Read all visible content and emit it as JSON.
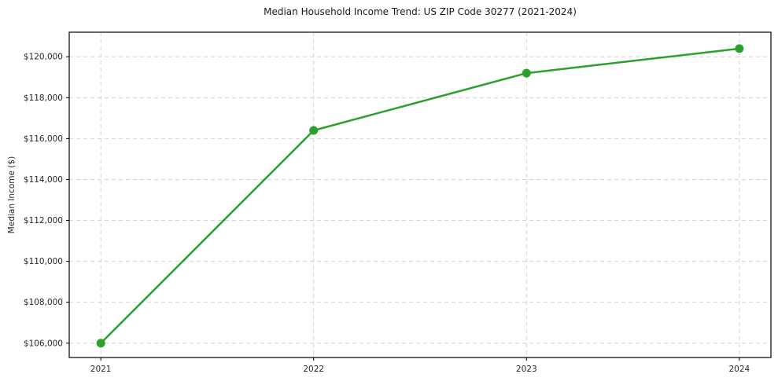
{
  "page": {
    "background_color": "#ffffff"
  },
  "chart_data": {
    "type": "line",
    "title": "Median Household Income Trend: US ZIP Code 30277 (2021-2024)",
    "xlabel": "",
    "ylabel": "Median Income ($)",
    "x": [
      2021,
      2022,
      2023,
      2024
    ],
    "x_tick_labels": [
      "2021",
      "2022",
      "2023",
      "2024"
    ],
    "series": [
      {
        "name": "Median Household Income",
        "values": [
          106000,
          116400,
          119200,
          120400
        ],
        "color": "#2ca02c"
      }
    ],
    "y_ticks": [
      106000,
      108000,
      110000,
      112000,
      114000,
      116000,
      118000,
      120000
    ],
    "y_tick_labels": [
      "$106,000",
      "$108,000",
      "$110,000",
      "$112,000",
      "$114,000",
      "$116,000",
      "$118,000",
      "$120,000"
    ],
    "ylim": [
      105300,
      121200
    ],
    "grid": true,
    "grid_color": "#cccccc",
    "grid_dash": "5 4",
    "spine_color": "#000000",
    "tick_color": "#000000",
    "marker": "circle",
    "marker_radius": 5.5,
    "line_width": 2.5,
    "legend_position": "none"
  }
}
